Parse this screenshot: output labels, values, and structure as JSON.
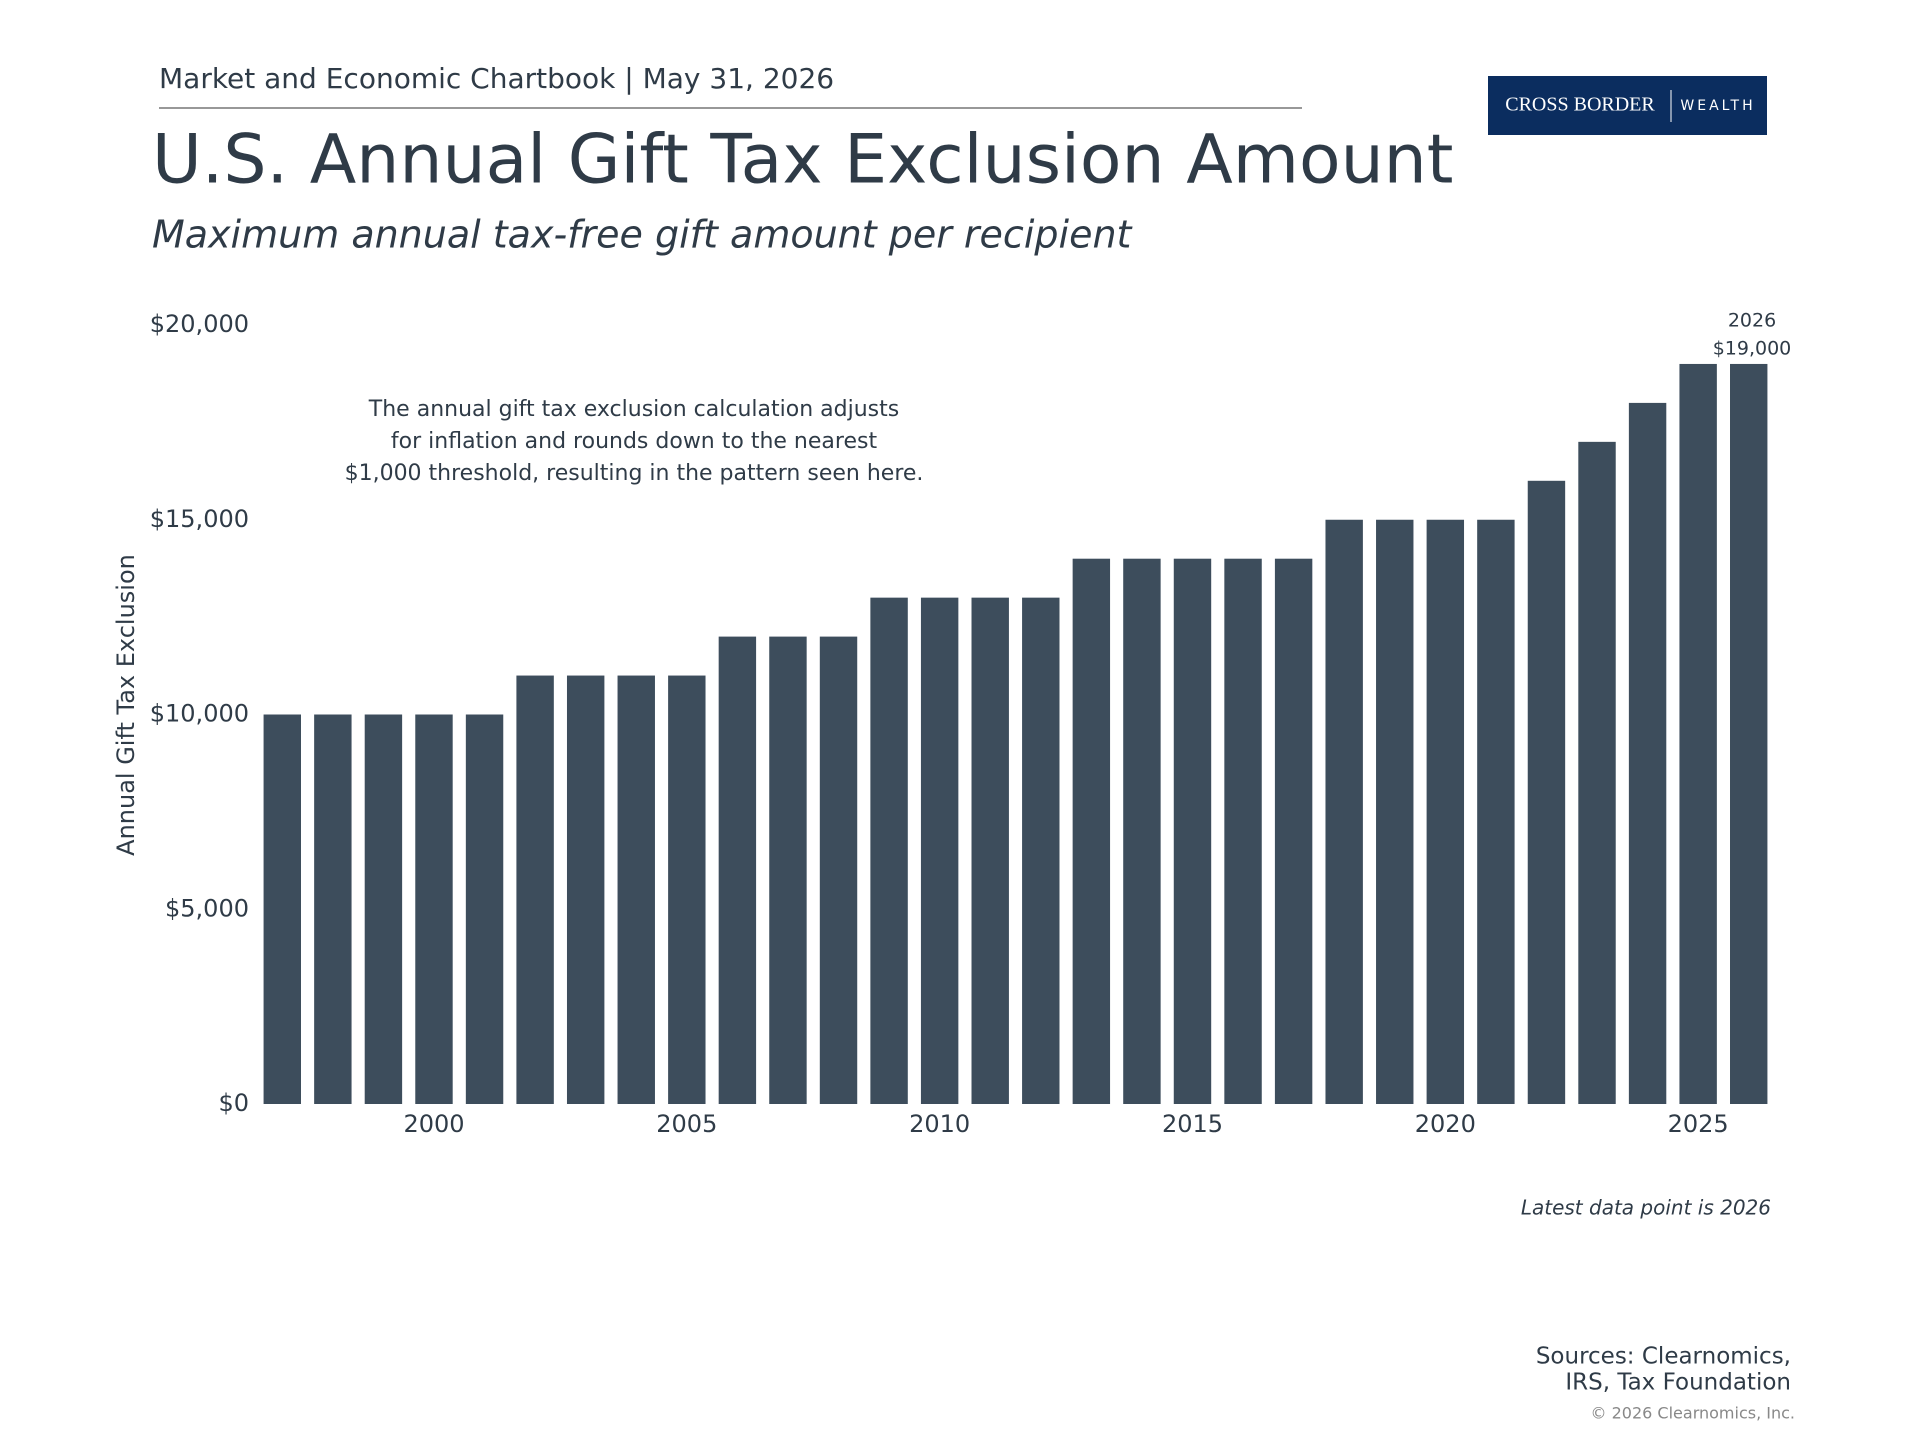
{
  "header": {
    "chartbook": "Market and Economic Chartbook | May 31, 2026",
    "logo_main": "CROSS BORDER",
    "logo_sub": "WEALTH"
  },
  "chart_data": {
    "type": "bar",
    "title": "U.S. Annual Gift Tax Exclusion Amount",
    "subtitle": "Maximum annual tax-free gift amount per recipient",
    "y_label": "Annual Gift Tax Exclusion",
    "x": [
      1997,
      1998,
      1999,
      2000,
      2001,
      2002,
      2003,
      2004,
      2005,
      2006,
      2007,
      2008,
      2009,
      2010,
      2011,
      2012,
      2013,
      2014,
      2015,
      2016,
      2017,
      2018,
      2019,
      2020,
      2021,
      2022,
      2023,
      2024,
      2025,
      2026
    ],
    "values": [
      10000,
      10000,
      10000,
      10000,
      10000,
      11000,
      11000,
      11000,
      11000,
      12000,
      12000,
      12000,
      13000,
      13000,
      13000,
      13000,
      14000,
      14000,
      14000,
      14000,
      14000,
      15000,
      15000,
      15000,
      15000,
      16000,
      17000,
      18000,
      19000,
      19000
    ],
    "color": "#3d4d5c",
    "xlim": [
      1996.5,
      2026.5
    ],
    "xticks": [
      2000,
      2005,
      2010,
      2015,
      2020,
      2025
    ],
    "ylim": [
      0,
      20000
    ],
    "yticks": [
      {
        "value": 0,
        "label": "$0"
      },
      {
        "value": 5000,
        "label": "$5,000"
      },
      {
        "value": 10000,
        "label": "$10,000"
      },
      {
        "value": 15000,
        "label": "$15,000"
      },
      {
        "value": 20000,
        "label": "$20,000"
      }
    ],
    "grid": false,
    "note_lines": [
      "The annual gift tax exclusion calculation adjusts",
      "for inflation and rounds down to the nearest",
      "$1,000 threshold, resulting in the pattern seen here."
    ],
    "last_point": {
      "x_label": "2026",
      "value_label": "$19,000"
    },
    "footnote": "Latest data point is 2026"
  },
  "footer": {
    "sources": [
      "Sources: Clearnomics,",
      "IRS, Tax Foundation"
    ],
    "copyright": "© 2026 Clearnomics, Inc."
  }
}
